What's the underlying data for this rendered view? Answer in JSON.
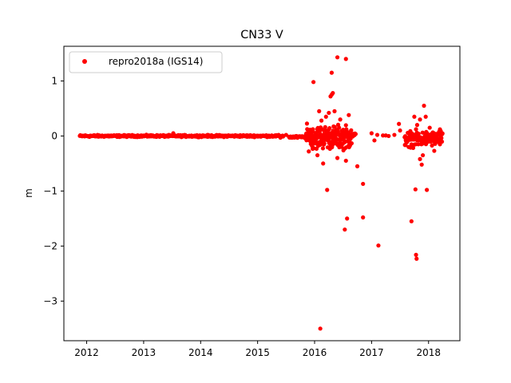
{
  "chart_data": {
    "type": "scatter",
    "title": "CN33 V",
    "xlabel": "",
    "ylabel": "m",
    "xlim": [
      2011.6,
      2018.55
    ],
    "ylim": [
      -3.72,
      1.63
    ],
    "x_ticks": [
      2012,
      2013,
      2014,
      2015,
      2016,
      2017,
      2018
    ],
    "x_tick_labels": [
      "2012",
      "2013",
      "2014",
      "2015",
      "2016",
      "2017",
      "2018"
    ],
    "y_ticks": [
      1,
      0,
      -1,
      -2,
      -3
    ],
    "y_tick_labels": [
      "1",
      "0",
      "−1",
      "−2",
      "−3"
    ],
    "grid": false,
    "legend": {
      "placement": "top-left",
      "entries": [
        "repro2018a (IGS14)"
      ]
    },
    "colors": {
      "series": "#ff0000",
      "background": "#ffffff",
      "axes": "#000000"
    },
    "series": [
      {
        "name": "repro2018a (IGS14)",
        "marker": "circle",
        "points": [
          {
            "x": 2015.98,
            "y": 0.98
          },
          {
            "x": 2016.28,
            "y": 0.72
          },
          {
            "x": 2016.3,
            "y": 0.75
          },
          {
            "x": 2016.32,
            "y": 0.78
          },
          {
            "x": 2016.3,
            "y": 1.15
          },
          {
            "x": 2016.4,
            "y": 1.43
          },
          {
            "x": 2016.55,
            "y": 1.4
          },
          {
            "x": 2016.08,
            "y": 0.45
          },
          {
            "x": 2016.2,
            "y": 0.35
          },
          {
            "x": 2016.25,
            "y": 0.42
          },
          {
            "x": 2016.35,
            "y": 0.45
          },
          {
            "x": 2016.6,
            "y": 0.38
          },
          {
            "x": 2016.12,
            "y": 0.28
          },
          {
            "x": 2016.45,
            "y": 0.3
          },
          {
            "x": 2016.22,
            "y": -0.98
          },
          {
            "x": 2016.75,
            "y": -0.55
          },
          {
            "x": 2016.85,
            "y": -0.87
          },
          {
            "x": 2016.57,
            "y": -1.5
          },
          {
            "x": 2016.85,
            "y": -1.48
          },
          {
            "x": 2016.53,
            "y": -1.7
          },
          {
            "x": 2017.12,
            "y": -1.99
          },
          {
            "x": 2016.1,
            "y": -3.5
          },
          {
            "x": 2016.05,
            "y": -0.35
          },
          {
            "x": 2016.15,
            "y": -0.5
          },
          {
            "x": 2016.4,
            "y": -0.4
          },
          {
            "x": 2016.55,
            "y": -0.45
          },
          {
            "x": 2017.48,
            "y": 0.22
          },
          {
            "x": 2017.5,
            "y": 0.1
          },
          {
            "x": 2017.75,
            "y": 0.35
          },
          {
            "x": 2017.8,
            "y": 0.2
          },
          {
            "x": 2017.85,
            "y": 0.3
          },
          {
            "x": 2017.92,
            "y": 0.55
          },
          {
            "x": 2017.95,
            "y": 0.35
          },
          {
            "x": 2018.02,
            "y": 0.15
          },
          {
            "x": 2018.2,
            "y": 0.12
          },
          {
            "x": 2017.7,
            "y": -1.55
          },
          {
            "x": 2017.77,
            "y": -0.97
          },
          {
            "x": 2017.97,
            "y": -0.98
          },
          {
            "x": 2017.78,
            "y": -2.16
          },
          {
            "x": 2017.79,
            "y": -2.23
          },
          {
            "x": 2017.88,
            "y": -0.52
          },
          {
            "x": 2017.85,
            "y": -0.42
          },
          {
            "x": 2017.9,
            "y": -0.35
          },
          {
            "x": 2018.1,
            "y": -0.27
          },
          {
            "x": 2017.65,
            "y": -0.2
          },
          {
            "x": 2017.82,
            "y": -0.15
          },
          {
            "x": 2017.25,
            "y": 0.01
          },
          {
            "x": 2017.3,
            "y": 0.0
          },
          {
            "x": 2017.4,
            "y": 0.02
          },
          {
            "x": 2017.05,
            "y": -0.08
          },
          {
            "x": 2017.0,
            "y": 0.05
          },
          {
            "x": 2017.1,
            "y": 0.02
          },
          {
            "x": 2017.2,
            "y": 0.01
          },
          {
            "x": 2013.52,
            "y": 0.05
          },
          {
            "x": 2015.4,
            "y": -0.03
          },
          {
            "x": 2015.5,
            "y": 0.02
          }
        ],
        "segments": [
          {
            "x_start": 2011.88,
            "x_end": 2015.45,
            "y_center": 0.0,
            "spread": 0.025,
            "step": 0.008
          },
          {
            "x_start": 2015.55,
            "x_end": 2015.85,
            "y_center": -0.02,
            "spread": 0.03,
            "step": 0.01
          },
          {
            "x_start": 2015.85,
            "x_end": 2016.65,
            "y_center": -0.02,
            "spread": 0.3,
            "step": 0.004
          },
          {
            "x_start": 2016.65,
            "x_end": 2016.72,
            "y_center": 0.0,
            "spread": 0.08,
            "step": 0.01
          },
          {
            "x_start": 2017.58,
            "x_end": 2018.25,
            "y_center": -0.05,
            "spread": 0.2,
            "step": 0.005
          }
        ]
      }
    ]
  }
}
